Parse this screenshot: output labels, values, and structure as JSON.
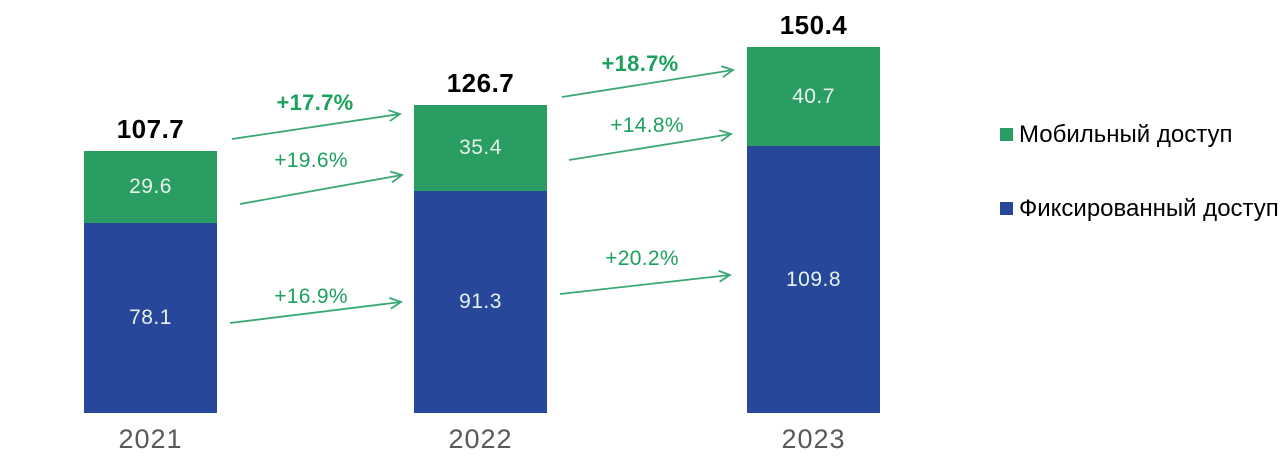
{
  "chart_data": {
    "type": "bar",
    "stacked": true,
    "grid": false,
    "axes_hidden": true,
    "legend_position": "right",
    "categories": [
      "2021",
      "2022",
      "2023"
    ],
    "series": [
      {
        "name": "Мобильный доступ",
        "color": "#2A9D62",
        "values": [
          29.6,
          35.4,
          40.7
        ]
      },
      {
        "name": "Фиксированный доступ",
        "color": "#27489A",
        "values": [
          78.1,
          91.3,
          109.8
        ]
      }
    ],
    "totals": [
      107.7,
      126.7,
      150.4
    ],
    "growth_arrows": [
      {
        "from": "2021",
        "to": "2022",
        "metric": "total",
        "label": "+17.7%",
        "bold": true
      },
      {
        "from": "2021",
        "to": "2022",
        "metric": "Мобильный доступ",
        "label": "+19.6%",
        "bold": false
      },
      {
        "from": "2021",
        "to": "2022",
        "metric": "Фиксированный доступ",
        "label": "+16.9%",
        "bold": false
      },
      {
        "from": "2022",
        "to": "2023",
        "metric": "total",
        "label": "+18.7%",
        "bold": true
      },
      {
        "from": "2022",
        "to": "2023",
        "metric": "Мобильный доступ",
        "label": "+14.8%",
        "bold": false
      },
      {
        "from": "2022",
        "to": "2023",
        "metric": "Фиксированный доступ",
        "label": "+20.2%",
        "bold": false
      }
    ],
    "legend": [
      {
        "label": "Мобильный доступ",
        "color": "#2A9D62"
      },
      {
        "label": "Фиксированный доступ",
        "color": "#27489A"
      }
    ]
  },
  "colors": {
    "background": "#FFFFFF",
    "arrow_line": "#3BA873",
    "percent_text": "#1CA15C",
    "total_label": "#000000",
    "bar_value_label": "#E9F1EC",
    "year_label": "#58595B",
    "legend_text": "#58595B"
  }
}
